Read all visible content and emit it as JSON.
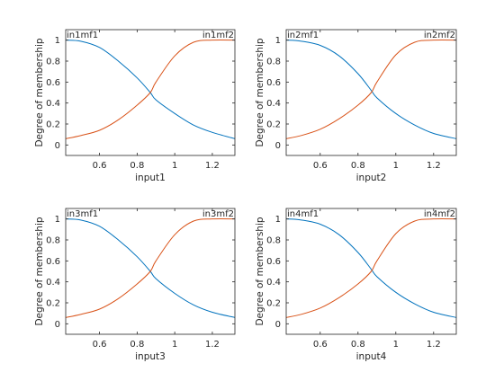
{
  "chart_data": [
    {
      "type": "line",
      "xlabel": "input1",
      "ylabel": "Degree of membership",
      "xlim": [
        0.42,
        1.32
      ],
      "ylim": [
        -0.1,
        1.1
      ],
      "xticks": [
        "0.6",
        "0.8",
        "1",
        "1.2"
      ],
      "yticks": [
        "0",
        "0.2",
        "0.4",
        "0.6",
        "0.8",
        "1"
      ],
      "grid": false,
      "series": [
        {
          "name": "in1mf1",
          "color": "#0072BD",
          "x": [
            0.42,
            0.5,
            0.6,
            0.7,
            0.8,
            0.87,
            0.9,
            1.0,
            1.1,
            1.2,
            1.32
          ],
          "values": [
            1.0,
            0.99,
            0.93,
            0.8,
            0.64,
            0.5,
            0.43,
            0.3,
            0.19,
            0.12,
            0.06
          ]
        },
        {
          "name": "in1mf2",
          "color": "#D95319",
          "x": [
            0.42,
            0.5,
            0.6,
            0.7,
            0.8,
            0.87,
            0.9,
            1.0,
            1.1,
            1.2,
            1.32
          ],
          "values": [
            0.06,
            0.09,
            0.14,
            0.24,
            0.38,
            0.5,
            0.6,
            0.85,
            0.98,
            1.0,
            1.0
          ]
        }
      ]
    },
    {
      "type": "line",
      "xlabel": "input2",
      "ylabel": "Degree of membership",
      "xlim": [
        0.42,
        1.32
      ],
      "ylim": [
        -0.1,
        1.1
      ],
      "xticks": [
        "0.6",
        "0.8",
        "1",
        "1.2"
      ],
      "yticks": [
        "0",
        "0.2",
        "0.4",
        "0.6",
        "0.8",
        "1"
      ],
      "grid": false,
      "series": [
        {
          "name": "in2mf1",
          "color": "#0072BD",
          "x": [
            0.42,
            0.5,
            0.6,
            0.7,
            0.8,
            0.87,
            0.9,
            1.0,
            1.1,
            1.2,
            1.32
          ],
          "values": [
            1.0,
            0.99,
            0.95,
            0.85,
            0.68,
            0.52,
            0.45,
            0.3,
            0.19,
            0.11,
            0.06
          ]
        },
        {
          "name": "in2mf2",
          "color": "#D95319",
          "x": [
            0.42,
            0.5,
            0.6,
            0.7,
            0.8,
            0.87,
            0.9,
            1.0,
            1.1,
            1.2,
            1.32
          ],
          "values": [
            0.06,
            0.09,
            0.15,
            0.25,
            0.38,
            0.5,
            0.6,
            0.86,
            0.98,
            1.0,
            1.0
          ]
        }
      ]
    },
    {
      "type": "line",
      "xlabel": "input3",
      "ylabel": "Degree of membership",
      "xlim": [
        0.42,
        1.32
      ],
      "ylim": [
        -0.1,
        1.1
      ],
      "xticks": [
        "0.6",
        "0.8",
        "1",
        "1.2"
      ],
      "yticks": [
        "0",
        "0.2",
        "0.4",
        "0.6",
        "0.8",
        "1"
      ],
      "grid": false,
      "series": [
        {
          "name": "in3mf1",
          "color": "#0072BD",
          "x": [
            0.42,
            0.5,
            0.6,
            0.7,
            0.8,
            0.87,
            0.9,
            1.0,
            1.1,
            1.2,
            1.32
          ],
          "values": [
            1.0,
            0.99,
            0.93,
            0.8,
            0.64,
            0.5,
            0.43,
            0.29,
            0.18,
            0.11,
            0.06
          ]
        },
        {
          "name": "in3mf2",
          "color": "#D95319",
          "x": [
            0.42,
            0.5,
            0.6,
            0.7,
            0.8,
            0.87,
            0.9,
            1.0,
            1.1,
            1.2,
            1.32
          ],
          "values": [
            0.06,
            0.09,
            0.14,
            0.24,
            0.38,
            0.5,
            0.6,
            0.85,
            0.98,
            1.0,
            1.0
          ]
        }
      ]
    },
    {
      "type": "line",
      "xlabel": "input4",
      "ylabel": "Degree of membership",
      "xlim": [
        0.42,
        1.32
      ],
      "ylim": [
        -0.1,
        1.1
      ],
      "xticks": [
        "0.6",
        "0.8",
        "1",
        "1.2"
      ],
      "yticks": [
        "0",
        "0.2",
        "0.4",
        "0.6",
        "0.8",
        "1"
      ],
      "grid": false,
      "series": [
        {
          "name": "in4mf1",
          "color": "#0072BD",
          "x": [
            0.42,
            0.5,
            0.6,
            0.7,
            0.8,
            0.87,
            0.9,
            1.0,
            1.1,
            1.2,
            1.32
          ],
          "values": [
            1.0,
            0.99,
            0.95,
            0.85,
            0.68,
            0.52,
            0.45,
            0.3,
            0.19,
            0.11,
            0.06
          ]
        },
        {
          "name": "in4mf2",
          "color": "#D95319",
          "x": [
            0.42,
            0.5,
            0.6,
            0.7,
            0.8,
            0.87,
            0.9,
            1.0,
            1.1,
            1.2,
            1.32
          ],
          "values": [
            0.06,
            0.09,
            0.15,
            0.25,
            0.38,
            0.5,
            0.6,
            0.86,
            0.98,
            1.0,
            1.0
          ]
        }
      ]
    }
  ]
}
